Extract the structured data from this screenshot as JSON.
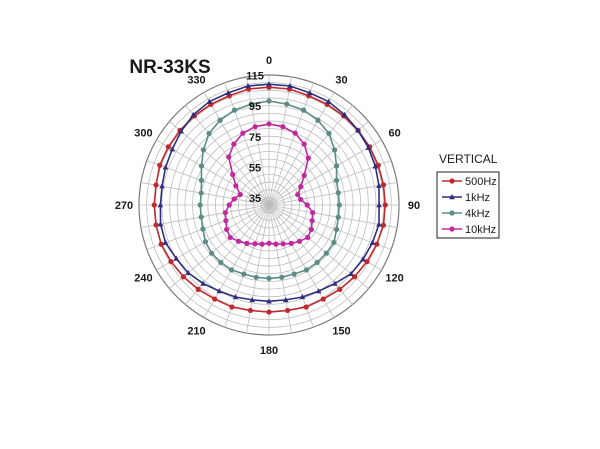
{
  "chart_data": {
    "type": "polar-line",
    "title": "NR-33KS",
    "angle_labels": [
      "0",
      "30",
      "60",
      "90",
      "120",
      "150",
      "180",
      "210",
      "240",
      "270",
      "300",
      "330"
    ],
    "radial_ticks": [
      "35",
      "55",
      "75",
      "95",
      "115"
    ],
    "rlim": [
      35,
      120
    ],
    "theta_start": "top",
    "theta_direction": "clockwise",
    "grid": true,
    "legend": {
      "title": "VERTICAL",
      "position": "right"
    },
    "theta": [
      0,
      10,
      20,
      30,
      40,
      50,
      60,
      70,
      80,
      90,
      100,
      110,
      120,
      130,
      140,
      150,
      160,
      170,
      180,
      190,
      200,
      210,
      220,
      230,
      240,
      250,
      260,
      270,
      280,
      290,
      300,
      310,
      320,
      330,
      340,
      350
    ],
    "series": [
      {
        "name": "500Hz",
        "color": "#c0282d",
        "marker": "circle",
        "r": [
          112,
          112,
          111,
          111,
          111,
          111,
          111,
          111,
          111,
          111,
          111,
          110,
          109,
          108,
          107,
          106,
          106,
          105,
          105,
          105,
          106,
          106,
          107,
          108,
          109,
          110,
          110,
          110,
          110,
          111,
          111,
          111,
          111,
          111,
          111,
          112
        ]
      },
      {
        "name": "1kHz",
        "color": "#2e2e7e",
        "marker": "triangle",
        "r": [
          114,
          114,
          113,
          113,
          112,
          111,
          110,
          109,
          108,
          107,
          108,
          107,
          106,
          105,
          102,
          100,
          99,
          98,
          98,
          98,
          99,
          100,
          102,
          104,
          105,
          107,
          107,
          106,
          106,
          107,
          108,
          110,
          112,
          113,
          113,
          114
        ]
      },
      {
        "name": "4kHz",
        "color": "#5b8c85",
        "marker": "circle",
        "r": [
          103,
          102,
          101,
          99,
          96,
          91,
          86,
          82,
          81,
          81,
          81,
          82,
          84,
          84,
          84,
          84,
          83,
          83,
          83,
          83,
          83,
          84,
          84,
          84,
          83,
          81,
          80,
          80,
          80,
          82,
          86,
          91,
          96,
          99,
          101,
          102
        ]
      },
      {
        "name": "10kHz",
        "color": "#c0289b",
        "marker": "circle",
        "r": [
          88,
          87,
          85,
          81,
          75,
          65,
          59,
          55,
          56,
          60,
          64,
          65,
          67,
          68,
          66,
          64,
          62,
          61,
          60,
          61,
          62,
          64,
          66,
          68,
          67,
          65,
          64,
          61,
          58,
          55,
          60,
          66,
          76,
          81,
          85,
          87
        ]
      }
    ]
  }
}
